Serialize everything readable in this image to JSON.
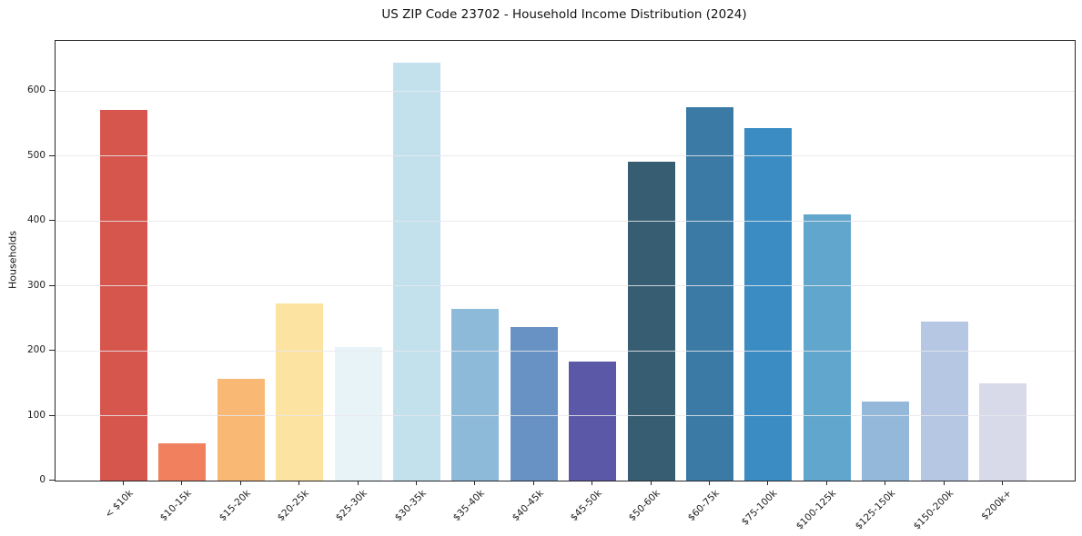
{
  "chart_data": {
    "type": "bar",
    "title": "US ZIP Code 23702 - Household Income Distribution (2024)",
    "xlabel": "",
    "ylabel": "Households",
    "categories": [
      "< $10k",
      "$10-15k",
      "$15-20k",
      "$20-25k",
      "$25-30k",
      "$30-35k",
      "$35-40k",
      "$40-45k",
      "$45-50k",
      "$50-60k",
      "$60-75k",
      "$75-100k",
      "$100-125k",
      "$125-150k",
      "$150-200k",
      "$200k+"
    ],
    "values": [
      571,
      57,
      157,
      273,
      206,
      643,
      265,
      237,
      183,
      491,
      575,
      543,
      410,
      122,
      245,
      150
    ],
    "bar_colors": [
      "#d6564e",
      "#f0805e",
      "#f9b873",
      "#fce3a2",
      "#e7f3f6",
      "#c2e1ed",
      "#8dbad9",
      "#6992c4",
      "#5c58a8",
      "#375d72",
      "#3a7aa5",
      "#3a8cc3",
      "#60a6cd",
      "#93b8da",
      "#b5c7e2",
      "#d8dae9"
    ],
    "ylim": [
      0,
      677
    ],
    "yticks": [
      0,
      100,
      200,
      300,
      400,
      500,
      600
    ],
    "grid": "horizontal-only, light gray, drawn over bars",
    "legend": "none",
    "background_color": "#ffffff",
    "grid_color": "#e7e7ec",
    "spine_color": "#26262b",
    "text_color": "#1c1c1c"
  }
}
